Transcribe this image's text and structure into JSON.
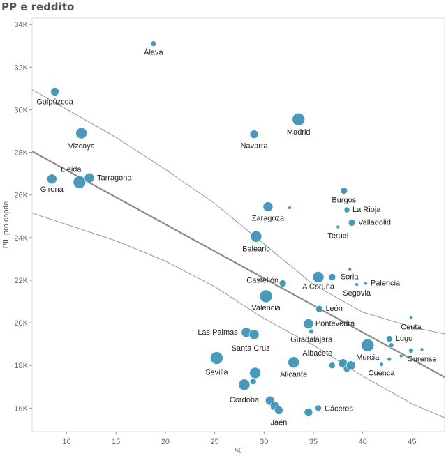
{
  "title": "PP e reddito",
  "chart_data": {
    "type": "scatter",
    "title": "PP e reddito",
    "xlabel": "%",
    "ylabel": "PIL pro capite",
    "xlim": [
      6.5,
      48.3
    ],
    "ylim": [
      14900,
      34300
    ],
    "x_ticks": [
      10,
      15,
      20,
      25,
      30,
      35,
      40,
      45
    ],
    "y_ticks": [
      16000,
      18000,
      20000,
      22000,
      24000,
      26000,
      28000,
      30000,
      32000,
      34000
    ],
    "y_tick_labels": [
      "16K",
      "18K",
      "20K",
      "22K",
      "24K",
      "26K",
      "28K",
      "30K",
      "32K",
      "34K"
    ],
    "grid": false,
    "colors": {
      "point": "#3a91b4",
      "trend": "#8a8a8a",
      "band": "#8c8c8c"
    },
    "trend_line": {
      "x": [
        6.5,
        48.3
      ],
      "y": [
        28050,
        17450
      ]
    },
    "confidence_upper": [
      [
        6.5,
        30950
      ],
      [
        15,
        28700
      ],
      [
        20,
        27200
      ],
      [
        25,
        25600
      ],
      [
        30,
        23700
      ],
      [
        35,
        21800
      ],
      [
        40,
        20500
      ],
      [
        45,
        19800
      ],
      [
        48.3,
        19480
      ]
    ],
    "confidence_lower": [
      [
        6.5,
        25150
      ],
      [
        15,
        23850
      ],
      [
        20,
        22900
      ],
      [
        25,
        21700
      ],
      [
        30,
        20200
      ],
      [
        35,
        18950
      ],
      [
        40,
        17500
      ],
      [
        45,
        16200
      ],
      [
        48.3,
        15550
      ]
    ],
    "points": [
      {
        "x": 18.8,
        "y": 33100,
        "size": 4,
        "label": "Álava"
      },
      {
        "x": 8.8,
        "y": 30850,
        "size": 6,
        "label": "Guipúzcoa"
      },
      {
        "x": 11.5,
        "y": 28900,
        "size": 8,
        "label": "Vizcaya"
      },
      {
        "x": 29.0,
        "y": 28850,
        "size": 6,
        "label": "Navarra"
      },
      {
        "x": 33.5,
        "y": 29550,
        "size": 9,
        "label": "Madrid"
      },
      {
        "x": 8.5,
        "y": 26750,
        "size": 7,
        "label": "Girona"
      },
      {
        "x": 11.3,
        "y": 26600,
        "size": 9,
        "label": "Lleida"
      },
      {
        "x": 12.3,
        "y": 26800,
        "size": 7,
        "label": "Tarragona"
      },
      {
        "x": 30.4,
        "y": 25450,
        "size": 7,
        "label": "Zaragoza"
      },
      {
        "x": 32.6,
        "y": 25400,
        "size": 2.5,
        "label": ""
      },
      {
        "x": 38.1,
        "y": 26200,
        "size": 5,
        "label": "Burgos"
      },
      {
        "x": 38.4,
        "y": 25300,
        "size": 4,
        "label": "La Rioja"
      },
      {
        "x": 38.9,
        "y": 24700,
        "size": 5,
        "label": "Valladolid"
      },
      {
        "x": 37.5,
        "y": 24500,
        "size": 2.5,
        "label": "Teruel"
      },
      {
        "x": 29.2,
        "y": 24050,
        "size": 8,
        "label": "Balearic"
      },
      {
        "x": 38.7,
        "y": 22500,
        "size": 2.5,
        "label": ""
      },
      {
        "x": 36.9,
        "y": 22150,
        "size": 5,
        "label": "Soria"
      },
      {
        "x": 40.3,
        "y": 21850,
        "size": 2.5,
        "label": "Palencia"
      },
      {
        "x": 39.4,
        "y": 21800,
        "size": 2.5,
        "label": "Segovia"
      },
      {
        "x": 35.5,
        "y": 22150,
        "size": 8,
        "label": "A Coruña"
      },
      {
        "x": 31.9,
        "y": 21850,
        "size": 5,
        "label": "Castellón"
      },
      {
        "x": 30.2,
        "y": 21250,
        "size": 9,
        "label": "Valencia"
      },
      {
        "x": 35.6,
        "y": 20650,
        "size": 5,
        "label": "León"
      },
      {
        "x": 44.9,
        "y": 20250,
        "size": 2.5,
        "label": "Ceuta"
      },
      {
        "x": 34.5,
        "y": 19950,
        "size": 7,
        "label": "Pontevedra"
      },
      {
        "x": 34.8,
        "y": 19600,
        "size": 3.5,
        "label": "Guadalajara"
      },
      {
        "x": 28.2,
        "y": 19550,
        "size": 7,
        "label": "Las Palmas"
      },
      {
        "x": 29.0,
        "y": 19450,
        "size": 7,
        "label": "Santa Cruz"
      },
      {
        "x": 42.7,
        "y": 19250,
        "size": 4.5,
        "label": "Lugo"
      },
      {
        "x": 42.9,
        "y": 18950,
        "size": 3.5,
        "label": ""
      },
      {
        "x": 40.5,
        "y": 18950,
        "size": 9,
        "label": "Murcia"
      },
      {
        "x": 44.9,
        "y": 18700,
        "size": 3.5,
        "label": ""
      },
      {
        "x": 46.0,
        "y": 18750,
        "size": 2.5,
        "label": "Ourense"
      },
      {
        "x": 43.9,
        "y": 18450,
        "size": 2.5,
        "label": ""
      },
      {
        "x": 42.7,
        "y": 18300,
        "size": 3,
        "label": ""
      },
      {
        "x": 41.9,
        "y": 18050,
        "size": 3,
        "label": "Cuenca"
      },
      {
        "x": 25.2,
        "y": 18350,
        "size": 9,
        "label": "Sevilla"
      },
      {
        "x": 33.0,
        "y": 18150,
        "size": 8,
        "label": "Alicante"
      },
      {
        "x": 36.9,
        "y": 18000,
        "size": 4.5,
        "label": "Albacete"
      },
      {
        "x": 38.0,
        "y": 18100,
        "size": 6.5,
        "label": ""
      },
      {
        "x": 38.4,
        "y": 17850,
        "size": 5,
        "label": ""
      },
      {
        "x": 38.8,
        "y": 18000,
        "size": 6.5,
        "label": ""
      },
      {
        "x": 29.1,
        "y": 17650,
        "size": 8,
        "label": ""
      },
      {
        "x": 28.9,
        "y": 17250,
        "size": 4.5,
        "label": ""
      },
      {
        "x": 28.0,
        "y": 17100,
        "size": 8,
        "label": "Córdoba"
      },
      {
        "x": 30.6,
        "y": 16350,
        "size": 6.5,
        "label": ""
      },
      {
        "x": 31.1,
        "y": 16100,
        "size": 6.5,
        "label": ""
      },
      {
        "x": 31.5,
        "y": 15900,
        "size": 6,
        "label": "Jaén"
      },
      {
        "x": 34.5,
        "y": 15800,
        "size": 6,
        "label": ""
      },
      {
        "x": 35.5,
        "y": 16000,
        "size": 4.5,
        "label": "Cáceres"
      }
    ]
  }
}
